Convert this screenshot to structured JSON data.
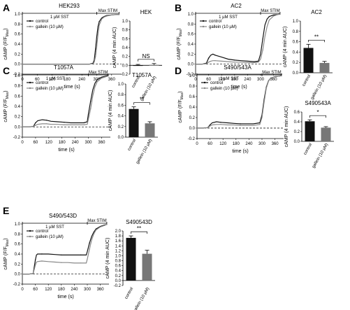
{
  "chart_data": [
    {
      "type": "line",
      "panel": "A",
      "title": "HEK293",
      "xlabel": "time (s)",
      "ylabel": "cAMP (F/F",
      "ylabel_sub": "Max",
      "ylabel_end": ")",
      "xlim": [
        0,
        400
      ],
      "ylim": [
        -0.2,
        1.0
      ],
      "xticks": [
        0,
        60,
        120,
        180,
        240,
        300,
        360
      ],
      "yticks": [
        -0.2,
        0.0,
        0.2,
        0.4,
        0.6,
        0.8,
        1.0
      ],
      "sst_label": "1 µM SST",
      "stim_label": "Max STIM",
      "sst_range": [
        0,
        300
      ],
      "stim_range": [
        300,
        390
      ],
      "legend": [
        "control",
        "gallein (10 µM)"
      ],
      "series": [
        {
          "name": "control",
          "x": [
            0,
            30,
            60,
            90,
            120,
            150,
            180,
            210,
            240,
            270,
            285,
            290,
            295,
            300,
            305,
            310,
            320,
            330,
            340,
            360,
            380,
            390
          ],
          "y": [
            0,
            0,
            0,
            0,
            0,
            0,
            0,
            0,
            0,
            0,
            0.02,
            0.08,
            0.3,
            0.55,
            0.75,
            0.85,
            0.92,
            0.95,
            0.97,
            0.98,
            0.99,
            0.99
          ]
        },
        {
          "name": "gallein (10 µM)",
          "x": [
            0,
            30,
            60,
            90,
            120,
            150,
            180,
            210,
            240,
            270,
            285,
            290,
            295,
            300,
            305,
            310,
            320,
            330,
            340,
            360,
            380,
            390
          ],
          "y": [
            0,
            0,
            0,
            0,
            0,
            0,
            0,
            0,
            0,
            0,
            0.01,
            0.04,
            0.15,
            0.35,
            0.6,
            0.78,
            0.9,
            0.94,
            0.96,
            0.98,
            0.99,
            0.99
          ]
        }
      ]
    },
    {
      "type": "bar",
      "panel": "A",
      "title": "HEK",
      "ylabel": "cAMP (4 min AUC)",
      "categories": [
        "control",
        "gallein (10 µM)"
      ],
      "values": [
        -0.01,
        0.01
      ],
      "errors": [
        0.03,
        0.03
      ],
      "ylim": [
        -0.2,
        1.0
      ],
      "yticks": [
        -0.2,
        0.0,
        0.2,
        0.4,
        0.6,
        0.8,
        1.0
      ],
      "significance": "NS"
    },
    {
      "type": "line",
      "panel": "B",
      "title": "AC2",
      "xlabel": "time (s)",
      "ylabel": "cAMP (F/F",
      "ylabel_sub": "Max",
      "ylabel_end": ")",
      "xlim": [
        0,
        400
      ],
      "ylim": [
        -0.2,
        1.0
      ],
      "xticks": [
        0,
        60,
        120,
        180,
        240,
        300,
        360
      ],
      "yticks": [
        -0.2,
        0.0,
        0.2,
        0.4,
        0.6,
        0.8,
        1.0
      ],
      "sst_label": "1 µM SST",
      "stim_label": "Max STIM",
      "sst_range": [
        0,
        300
      ],
      "stim_range": [
        300,
        390
      ],
      "legend": [
        "control",
        "gallein (10 µM)"
      ],
      "series": [
        {
          "name": "control",
          "x": [
            0,
            30,
            50,
            60,
            70,
            80,
            90,
            120,
            150,
            180,
            210,
            240,
            270,
            290,
            300,
            310,
            320,
            330,
            340,
            360,
            380,
            390
          ],
          "y": [
            0,
            0,
            0.02,
            0.12,
            0.18,
            0.2,
            0.18,
            0.14,
            0.1,
            0.08,
            0.07,
            0.06,
            0.05,
            0.06,
            0.2,
            0.5,
            0.78,
            0.9,
            0.95,
            0.98,
            0.99,
            1.0
          ]
        },
        {
          "name": "gallein (10 µM)",
          "x": [
            0,
            30,
            50,
            60,
            70,
            80,
            90,
            120,
            150,
            180,
            210,
            240,
            270,
            290,
            300,
            310,
            320,
            330,
            340,
            360,
            380,
            390
          ],
          "y": [
            0,
            0,
            0.01,
            0.04,
            0.06,
            0.07,
            0.07,
            0.06,
            0.05,
            0.04,
            0.04,
            0.03,
            0.03,
            0.04,
            0.1,
            0.28,
            0.55,
            0.75,
            0.88,
            0.96,
            0.99,
            1.0
          ]
        }
      ]
    },
    {
      "type": "bar",
      "panel": "B",
      "title": "AC2",
      "ylabel": "cAMP (4 min AUC)",
      "categories": [
        "control",
        "gallein (10 µM)"
      ],
      "values": [
        0.48,
        0.19
      ],
      "errors": [
        0.07,
        0.03
      ],
      "ylim": [
        0.0,
        1.0
      ],
      "yticks": [
        0.0,
        0.2,
        0.4,
        0.6,
        0.8,
        1.0
      ],
      "significance": "**"
    },
    {
      "type": "line",
      "panel": "C",
      "title": "T1057A",
      "xlabel": "time (s)",
      "ylabel": "cAMP (F/F",
      "ylabel_sub": "Max",
      "ylabel_end": ")",
      "xlim": [
        0,
        400
      ],
      "ylim": [
        -0.2,
        1.0
      ],
      "xticks": [
        0,
        60,
        120,
        180,
        240,
        300,
        360
      ],
      "yticks": [
        -0.2,
        0.0,
        0.2,
        0.4,
        0.6,
        0.8,
        1.0
      ],
      "sst_label": "1 µM SST",
      "stim_label": "Max STIM",
      "sst_range": [
        0,
        300
      ],
      "stim_range": [
        300,
        390
      ],
      "legend": [
        "control",
        "gallein (10 µM)"
      ],
      "series": [
        {
          "name": "control",
          "x": [
            0,
            30,
            50,
            60,
            70,
            90,
            110,
            130,
            160,
            190,
            220,
            250,
            280,
            295,
            300,
            310,
            320,
            330,
            340,
            360,
            380,
            390
          ],
          "y": [
            0,
            0,
            0.01,
            0.08,
            0.12,
            0.14,
            0.13,
            0.11,
            0.1,
            0.09,
            0.08,
            0.08,
            0.08,
            0.1,
            0.25,
            0.5,
            0.72,
            0.85,
            0.92,
            0.97,
            0.99,
            1.0
          ]
        },
        {
          "name": "gallein (10 µM)",
          "x": [
            0,
            30,
            50,
            60,
            70,
            90,
            110,
            130,
            160,
            190,
            220,
            250,
            280,
            295,
            300,
            310,
            320,
            330,
            340,
            360,
            380,
            390
          ],
          "y": [
            0,
            0,
            0.01,
            0.03,
            0.05,
            0.06,
            0.06,
            0.05,
            0.05,
            0.04,
            0.04,
            0.04,
            0.04,
            0.05,
            0.15,
            0.35,
            0.6,
            0.78,
            0.88,
            0.95,
            0.98,
            0.99
          ]
        }
      ]
    },
    {
      "type": "bar",
      "panel": "C",
      "title": "T1057A",
      "ylabel": "cAMP (4 min AUC)",
      "categories": [
        "control",
        "gallein (10 µM)"
      ],
      "values": [
        0.53,
        0.26
      ],
      "errors": [
        0.04,
        0.03
      ],
      "ylim": [
        0.0,
        1.0
      ],
      "yticks": [
        0.0,
        0.2,
        0.4,
        0.6,
        0.8,
        1.0
      ],
      "significance": "**"
    },
    {
      "type": "line",
      "panel": "D",
      "title": "S490/543A",
      "xlabel": "time (s)",
      "ylabel": "cAMP (F/F",
      "ylabel_sub": "Max",
      "ylabel_end": ")",
      "xlim": [
        0,
        400
      ],
      "ylim": [
        -0.2,
        1.0
      ],
      "xticks": [
        0,
        60,
        120,
        180,
        240,
        300,
        360
      ],
      "yticks": [
        -0.2,
        0.0,
        0.2,
        0.4,
        0.6,
        0.8,
        1.0
      ],
      "sst_label": "1 µM SST",
      "stim_label": "Max STIM",
      "sst_range": [
        0,
        300
      ],
      "stim_range": [
        300,
        390
      ],
      "legend": [
        "control",
        "gallein (10 µM)"
      ],
      "series": [
        {
          "name": "control",
          "x": [
            0,
            30,
            50,
            60,
            70,
            90,
            110,
            140,
            170,
            200,
            230,
            260,
            290,
            300,
            310,
            320,
            330,
            340,
            360,
            380,
            390
          ],
          "y": [
            0,
            0,
            0.01,
            0.06,
            0.1,
            0.12,
            0.11,
            0.1,
            0.09,
            0.08,
            0.08,
            0.08,
            0.1,
            0.25,
            0.55,
            0.78,
            0.9,
            0.95,
            0.98,
            0.99,
            1.0
          ]
        },
        {
          "name": "gallein (10 µM)",
          "x": [
            0,
            30,
            50,
            60,
            70,
            90,
            110,
            140,
            170,
            200,
            230,
            260,
            290,
            300,
            310,
            320,
            330,
            340,
            360,
            380,
            390
          ],
          "y": [
            0,
            0,
            0.01,
            0.04,
            0.06,
            0.07,
            0.07,
            0.06,
            0.06,
            0.05,
            0.05,
            0.05,
            0.07,
            0.2,
            0.5,
            0.76,
            0.89,
            0.95,
            0.98,
            0.99,
            1.0
          ]
        }
      ]
    },
    {
      "type": "bar",
      "panel": "D",
      "title": "S490543A",
      "ylabel": "cAMP (4 min AUC)",
      "categories": [
        "control",
        "gallein (10 µM)"
      ],
      "values": [
        0.41,
        0.28
      ],
      "errors": [
        0.03,
        0.02
      ],
      "ylim": [
        0.0,
        0.6
      ],
      "yticks": [
        0.0,
        0.2,
        0.4,
        0.6
      ],
      "significance": "*"
    },
    {
      "type": "line",
      "panel": "E",
      "title": "S490/543D",
      "xlabel": "time (s)",
      "ylabel": "cAMP (F/F",
      "ylabel_sub": "Max",
      "ylabel_end": ")",
      "xlim": [
        0,
        400
      ],
      "ylim": [
        -0.2,
        1.0
      ],
      "xticks": [
        0,
        60,
        120,
        180,
        240,
        300,
        360
      ],
      "yticks": [
        -0.2,
        0.0,
        0.2,
        0.4,
        0.6,
        0.8,
        1.0
      ],
      "sst_label": "1 µM SST",
      "stim_label": "Max STIM",
      "sst_range": [
        0,
        300
      ],
      "stim_range": [
        300,
        390
      ],
      "legend": [
        "control",
        "gallein (10 µM)"
      ],
      "series": [
        {
          "name": "control",
          "x": [
            0,
            30,
            50,
            60,
            65,
            70,
            90,
            120,
            150,
            180,
            210,
            240,
            270,
            295,
            300,
            310,
            320,
            330,
            340,
            360,
            380,
            390
          ],
          "y": [
            0,
            0,
            0.01,
            0.28,
            0.38,
            0.4,
            0.4,
            0.4,
            0.39,
            0.38,
            0.38,
            0.38,
            0.38,
            0.38,
            0.45,
            0.62,
            0.75,
            0.84,
            0.9,
            0.95,
            0.98,
            0.99
          ]
        },
        {
          "name": "gallein (10 µM)",
          "x": [
            0,
            30,
            50,
            60,
            65,
            70,
            90,
            120,
            150,
            180,
            210,
            240,
            270,
            295,
            300,
            310,
            320,
            330,
            340,
            360,
            380,
            390
          ],
          "y": [
            0,
            0,
            0.01,
            0.18,
            0.24,
            0.25,
            0.26,
            0.25,
            0.24,
            0.23,
            0.23,
            0.22,
            0.22,
            0.22,
            0.3,
            0.5,
            0.68,
            0.8,
            0.88,
            0.94,
            0.97,
            0.99
          ]
        }
      ]
    },
    {
      "type": "bar",
      "panel": "E",
      "title": "S490543D",
      "ylabel": "cAMP (4 min AUC)",
      "categories": [
        "control",
        "gallein (10 µM)"
      ],
      "values": [
        1.72,
        1.08
      ],
      "errors": [
        0.08,
        0.14
      ],
      "ylim": [
        -0.2,
        2.0
      ],
      "yticks": [
        -0.2,
        0.0,
        0.2,
        0.4,
        0.6,
        0.8,
        1.0,
        1.2,
        1.4,
        1.6,
        1.8,
        2.0
      ],
      "significance": "**"
    }
  ]
}
